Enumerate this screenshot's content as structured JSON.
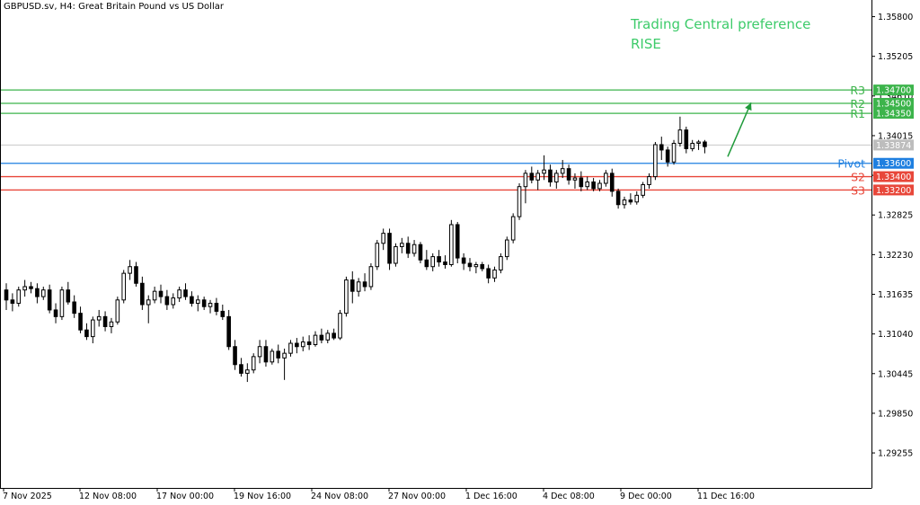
{
  "header": {
    "symbol_line": "GBPUSD.sv, H4:  Great Britain Pound vs US Dollar"
  },
  "annotation": {
    "line1": "Trading Central preference",
    "line2": "RISE",
    "color": "#3dcb6a"
  },
  "colors": {
    "resistance": "#3cb44b",
    "pivot": "#1e7fe0",
    "support": "#e8473a",
    "current_price_line": "#c8c8c8",
    "candle": "#000000"
  },
  "chart_data": {
    "type": "candlestick",
    "title": "",
    "xlabel": "",
    "ylabel": "",
    "ylim": [
      1.2873,
      1.3605
    ],
    "y_ticks": [
      "1.35800",
      "1.35205",
      "1.34610",
      "1.34015",
      "1.33420",
      "1.32825",
      "1.32230",
      "1.31635",
      "1.31040",
      "1.30445",
      "1.29850",
      "1.29255"
    ],
    "x_ticks": [
      "7 Nov 2025",
      "12 Nov 08:00",
      "17 Nov 00:00",
      "19 Nov 16:00",
      "24 Nov 08:00",
      "27 Nov 00:00",
      "1 Dec 16:00",
      "4 Dec 08:00",
      "9 Dec 00:00",
      "11 Dec 16:00"
    ],
    "levels": [
      {
        "label": "R3",
        "value": "1.34700",
        "price": 1.347,
        "kind": "resistance"
      },
      {
        "label": "R2",
        "value": "1.34500",
        "price": 1.345,
        "kind": "resistance"
      },
      {
        "label": "R1",
        "value": "1.34350",
        "price": 1.3435,
        "kind": "resistance"
      },
      {
        "label": "Pivot",
        "value": "1.33600",
        "price": 1.336,
        "kind": "pivot"
      },
      {
        "label": "S2",
        "value": "1.33400",
        "price": 1.334,
        "kind": "support"
      },
      {
        "label": "S3",
        "value": "1.33200",
        "price": 1.332,
        "kind": "support"
      }
    ],
    "current_price": {
      "value": "1.33874",
      "price": 1.33874
    },
    "candles": [
      [
        1.317,
        1.318,
        1.314,
        1.3155
      ],
      [
        1.3155,
        1.3165,
        1.3138,
        1.315
      ],
      [
        1.315,
        1.3175,
        1.3145,
        1.317
      ],
      [
        1.317,
        1.3185,
        1.316,
        1.3175
      ],
      [
        1.3175,
        1.3182,
        1.3165,
        1.3172
      ],
      [
        1.3172,
        1.318,
        1.315,
        1.316
      ],
      [
        1.316,
        1.3175,
        1.3155,
        1.317
      ],
      [
        1.317,
        1.3178,
        1.3135,
        1.314
      ],
      [
        1.314,
        1.315,
        1.312,
        1.313
      ],
      [
        1.313,
        1.3175,
        1.3125,
        1.317
      ],
      [
        1.317,
        1.3182,
        1.3148,
        1.3152
      ],
      [
        1.3152,
        1.3162,
        1.3128,
        1.3135
      ],
      [
        1.3135,
        1.3145,
        1.3105,
        1.311
      ],
      [
        1.311,
        1.312,
        1.3095,
        1.31
      ],
      [
        1.31,
        1.313,
        1.309,
        1.3125
      ],
      [
        1.3125,
        1.314,
        1.3115,
        1.313
      ],
      [
        1.313,
        1.3138,
        1.3108,
        1.3115
      ],
      [
        1.3115,
        1.3128,
        1.3105,
        1.3122
      ],
      [
        1.3122,
        1.316,
        1.3118,
        1.3155
      ],
      [
        1.3155,
        1.32,
        1.315,
        1.3195
      ],
      [
        1.3195,
        1.3215,
        1.3185,
        1.3205
      ],
      [
        1.3205,
        1.3212,
        1.3175,
        1.318
      ],
      [
        1.318,
        1.319,
        1.314,
        1.3148
      ],
      [
        1.3148,
        1.3162,
        1.312,
        1.3155
      ],
      [
        1.3155,
        1.3175,
        1.315,
        1.3168
      ],
      [
        1.3168,
        1.3178,
        1.315,
        1.316
      ],
      [
        1.316,
        1.317,
        1.314,
        1.3148
      ],
      [
        1.3148,
        1.3165,
        1.3142,
        1.3158
      ],
      [
        1.3158,
        1.3175,
        1.3152,
        1.317
      ],
      [
        1.317,
        1.318,
        1.3155,
        1.316
      ],
      [
        1.316,
        1.3168,
        1.3145,
        1.315
      ],
      [
        1.315,
        1.3162,
        1.3138,
        1.3155
      ],
      [
        1.3155,
        1.316,
        1.314,
        1.3145
      ],
      [
        1.3145,
        1.3155,
        1.3135,
        1.315
      ],
      [
        1.315,
        1.3158,
        1.3132,
        1.3138
      ],
      [
        1.3138,
        1.3148,
        1.3125,
        1.313
      ],
      [
        1.313,
        1.314,
        1.308,
        1.3085
      ],
      [
        1.3085,
        1.3095,
        1.305,
        1.3058
      ],
      [
        1.3058,
        1.3068,
        1.304,
        1.3045
      ],
      [
        1.3045,
        1.306,
        1.3032,
        1.305
      ],
      [
        1.305,
        1.3075,
        1.3045,
        1.307
      ],
      [
        1.307,
        1.3095,
        1.306,
        1.3085
      ],
      [
        1.3085,
        1.3095,
        1.3055,
        1.3062
      ],
      [
        1.3062,
        1.3082,
        1.3058,
        1.3078
      ],
      [
        1.3078,
        1.3088,
        1.306,
        1.3068
      ],
      [
        1.3068,
        1.3082,
        1.3035,
        1.3075
      ],
      [
        1.3075,
        1.3095,
        1.307,
        1.309
      ],
      [
        1.309,
        1.3098,
        1.3075,
        1.3085
      ],
      [
        1.3085,
        1.31,
        1.3078,
        1.3092
      ],
      [
        1.3092,
        1.3102,
        1.308,
        1.3088
      ],
      [
        1.3088,
        1.3108,
        1.3085,
        1.3102
      ],
      [
        1.3102,
        1.3112,
        1.309,
        1.3095
      ],
      [
        1.3095,
        1.311,
        1.309,
        1.3105
      ],
      [
        1.3105,
        1.3112,
        1.3095,
        1.3098
      ],
      [
        1.3098,
        1.314,
        1.3095,
        1.3135
      ],
      [
        1.3135,
        1.319,
        1.313,
        1.3185
      ],
      [
        1.3185,
        1.3198,
        1.315,
        1.3168
      ],
      [
        1.3168,
        1.3188,
        1.316,
        1.3182
      ],
      [
        1.3182,
        1.3195,
        1.3168,
        1.3175
      ],
      [
        1.3175,
        1.321,
        1.317,
        1.3205
      ],
      [
        1.3205,
        1.3245,
        1.32,
        1.324
      ],
      [
        1.324,
        1.3262,
        1.323,
        1.3255
      ],
      [
        1.3255,
        1.3262,
        1.32,
        1.321
      ],
      [
        1.321,
        1.324,
        1.3205,
        1.3235
      ],
      [
        1.3235,
        1.3248,
        1.3225,
        1.324
      ],
      [
        1.324,
        1.325,
        1.3218,
        1.3225
      ],
      [
        1.3225,
        1.3245,
        1.322,
        1.3238
      ],
      [
        1.3238,
        1.3242,
        1.321,
        1.3215
      ],
      [
        1.3215,
        1.323,
        1.32,
        1.3205
      ],
      [
        1.3205,
        1.3225,
        1.3198,
        1.322
      ],
      [
        1.322,
        1.323,
        1.3205,
        1.3212
      ],
      [
        1.3212,
        1.3222,
        1.3202,
        1.3208
      ],
      [
        1.3208,
        1.3275,
        1.3205,
        1.3268
      ],
      [
        1.3268,
        1.3272,
        1.321,
        1.3218
      ],
      [
        1.3218,
        1.3225,
        1.32,
        1.321
      ],
      [
        1.321,
        1.3218,
        1.3198,
        1.3205
      ],
      [
        1.3205,
        1.3212,
        1.3195,
        1.3208
      ],
      [
        1.3208,
        1.3212,
        1.3198,
        1.3202
      ],
      [
        1.3202,
        1.3208,
        1.318,
        1.3188
      ],
      [
        1.3188,
        1.3205,
        1.3182,
        1.32
      ],
      [
        1.32,
        1.3225,
        1.3195,
        1.322
      ],
      [
        1.322,
        1.325,
        1.3215,
        1.3245
      ],
      [
        1.3245,
        1.3285,
        1.324,
        1.328
      ],
      [
        1.328,
        1.333,
        1.3275,
        1.3325
      ],
      [
        1.3325,
        1.335,
        1.33,
        1.3345
      ],
      [
        1.3345,
        1.3355,
        1.333,
        1.3335
      ],
      [
        1.3335,
        1.335,
        1.332,
        1.3345
      ],
      [
        1.3345,
        1.3372,
        1.3335,
        1.335
      ],
      [
        1.335,
        1.3358,
        1.3325,
        1.3332
      ],
      [
        1.3332,
        1.335,
        1.3322,
        1.3345
      ],
      [
        1.3345,
        1.3365,
        1.3338,
        1.3352
      ],
      [
        1.3352,
        1.3358,
        1.3328,
        1.3335
      ],
      [
        1.3335,
        1.3345,
        1.3322,
        1.3338
      ],
      [
        1.3338,
        1.3348,
        1.3318,
        1.3325
      ],
      [
        1.3325,
        1.334,
        1.332,
        1.3332
      ],
      [
        1.3332,
        1.3338,
        1.3318,
        1.3322
      ],
      [
        1.3322,
        1.3335,
        1.3318,
        1.333
      ],
      [
        1.333,
        1.335,
        1.3325,
        1.3345
      ],
      [
        1.3345,
        1.3352,
        1.331,
        1.3318
      ],
      [
        1.3318,
        1.3322,
        1.3292,
        1.3298
      ],
      [
        1.3298,
        1.331,
        1.3292,
        1.3305
      ],
      [
        1.3305,
        1.3315,
        1.3298,
        1.3302
      ],
      [
        1.3302,
        1.3318,
        1.3298,
        1.3312
      ],
      [
        1.3312,
        1.3332,
        1.3308,
        1.3328
      ],
      [
        1.3328,
        1.3345,
        1.3322,
        1.334
      ],
      [
        1.334,
        1.3392,
        1.3335,
        1.3388
      ],
      [
        1.3388,
        1.34,
        1.3365,
        1.338
      ],
      [
        1.338,
        1.3385,
        1.3355,
        1.3362
      ],
      [
        1.3362,
        1.3395,
        1.3358,
        1.339
      ],
      [
        1.339,
        1.343,
        1.3385,
        1.341
      ],
      [
        1.341,
        1.3415,
        1.3375,
        1.3382
      ],
      [
        1.3382,
        1.3395,
        1.3378,
        1.339
      ],
      [
        1.339,
        1.3395,
        1.338,
        1.3392
      ],
      [
        1.3392,
        1.3395,
        1.3375,
        1.3385
      ]
    ]
  }
}
